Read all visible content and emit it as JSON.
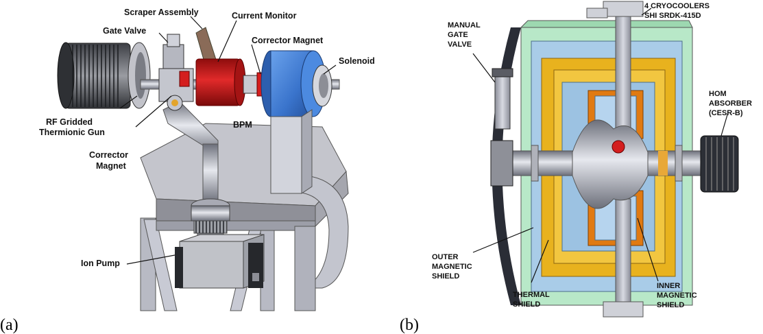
{
  "panel_a": {
    "tag": "(a)",
    "labels": {
      "scraper": "Scraper Assembly",
      "gate_valve": "Gate Valve",
      "current_monitor": "Current Monitor",
      "corrector_top": "Corrector Magnet",
      "solenoid": "Solenoid",
      "rf_gun_1": "RF Gridded",
      "rf_gun_2": "Thermionic Gun",
      "bpm": "BPM",
      "corrector_low_1": "Corrector",
      "corrector_low_2": "Magnet",
      "ion_pump": "Ion Pump"
    }
  },
  "panel_b": {
    "tag": "(b)",
    "labels": {
      "manual_1": "MANUAL",
      "manual_2": "GATE",
      "manual_3": "VALVE",
      "cryo_1": "4 CRYOCOOLERS",
      "cryo_2": "SHI SRDK-415D",
      "hom_1": "HOM",
      "hom_2": "ABSORBER",
      "hom_3": "(CESR-B)",
      "outer_1": "OUTER",
      "outer_2": "MAGNETIC",
      "outer_3": "SHIELD",
      "thermal_1": "THERMAL",
      "thermal_2": "SHIELD",
      "inner_1": "INNER",
      "inner_2": "MAGNETIC",
      "inner_3": "SHIELD"
    }
  },
  "colors": {
    "steel": "#b9bcc8",
    "red": "#d41e1e",
    "blue": "#3f7fd8",
    "yellow": "#e8b21e",
    "orange": "#e07a12",
    "light_blue": "#a9cce8",
    "light_green": "#b8e8c8",
    "dark_shell": "#2a2d36"
  }
}
